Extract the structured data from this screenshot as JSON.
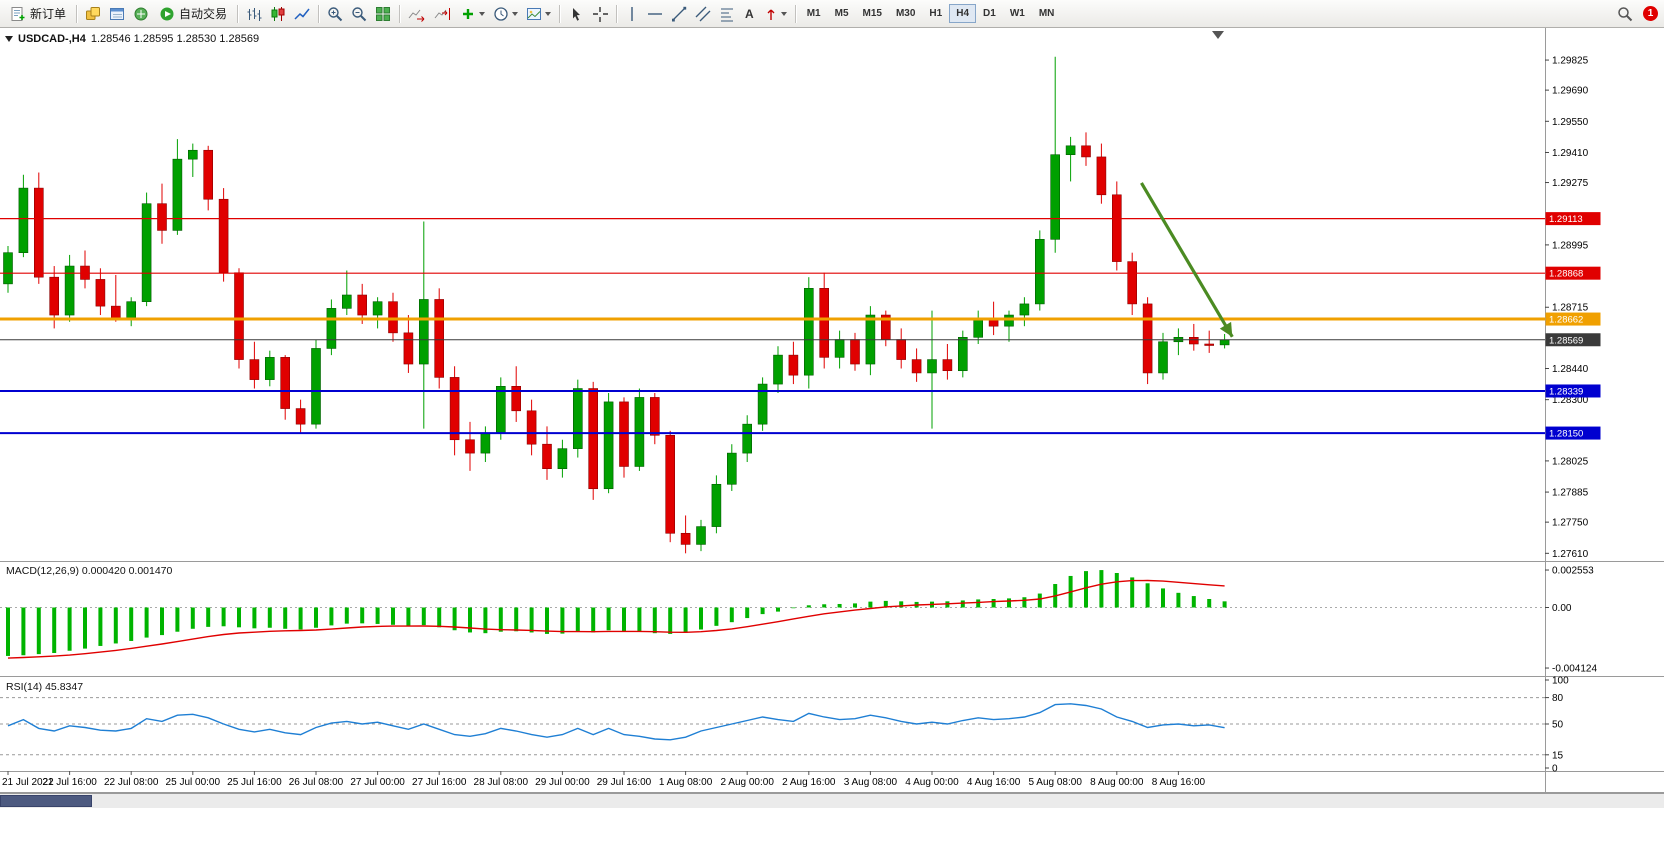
{
  "toolbar": {
    "new_order_label": "新订单",
    "autotrading_label": "自动交易",
    "text_tool_label": "A",
    "timeframes": [
      "M1",
      "M5",
      "M15",
      "M30",
      "H1",
      "H4",
      "D1",
      "W1",
      "MN"
    ],
    "active_timeframe": "H4",
    "notification_count": "1"
  },
  "chart": {
    "symbol_label": "USDCAD-,H4",
    "ohlc_text": "1.28546 1.28595 1.28530 1.28569",
    "macd_label": "MACD(12,26,9) 0.000420 0.001470",
    "rsi_label": "RSI(14) 45.8347"
  },
  "chart_data": {
    "type": "candlestick",
    "symbol": "USDCAD-",
    "period": "H4",
    "current_ohlc": {
      "open": 1.28546,
      "high": 1.28595,
      "low": 1.2853,
      "close": 1.28569
    },
    "y_axis": {
      "max": 1.2996,
      "min": 1.2758,
      "ticks": [
        1.29825,
        1.2969,
        1.2955,
        1.2941,
        1.29275,
        1.28995,
        1.28715,
        1.2844,
        1.283,
        1.28025,
        1.27885,
        1.2775,
        1.2761
      ]
    },
    "x_labels": [
      "21 Jul 2022",
      "21 Jul 16:00",
      "22 Jul 08:00",
      "25 Jul 00:00",
      "25 Jul 16:00",
      "26 Jul 08:00",
      "27 Jul 00:00",
      "27 Jul 16:00",
      "28 Jul 08:00",
      "29 Jul 00:00",
      "29 Jul 16:00",
      "1 Aug 08:00",
      "2 Aug 00:00",
      "2 Aug 16:00",
      "3 Aug 08:00",
      "4 Aug 00:00",
      "4 Aug 16:00",
      "5 Aug 08:00",
      "8 Aug 00:00",
      "8 Aug 16:00"
    ],
    "label_every_n_candles": 4,
    "candle_up_color": "#00a000",
    "candle_down_color": "#e00000",
    "candles": [
      [
        1.2882,
        1.2899,
        1.2878,
        1.2896
      ],
      [
        1.2896,
        1.2931,
        1.2894,
        1.2925
      ],
      [
        1.2925,
        1.2932,
        1.2882,
        1.2885
      ],
      [
        1.2885,
        1.289,
        1.2862,
        1.2868
      ],
      [
        1.2868,
        1.2895,
        1.2865,
        1.289
      ],
      [
        1.289,
        1.2897,
        1.288,
        1.2884
      ],
      [
        1.2884,
        1.2889,
        1.2868,
        1.2872
      ],
      [
        1.2872,
        1.2886,
        1.2865,
        1.2866
      ],
      [
        1.2866,
        1.2876,
        1.2863,
        1.2874
      ],
      [
        1.2874,
        1.2923,
        1.2872,
        1.2918
      ],
      [
        1.2918,
        1.2927,
        1.29,
        1.2906
      ],
      [
        1.2906,
        1.2947,
        1.2904,
        1.2938
      ],
      [
        1.2938,
        1.2945,
        1.293,
        1.2942
      ],
      [
        1.2942,
        1.2944,
        1.2915,
        1.292
      ],
      [
        1.292,
        1.2925,
        1.2883,
        1.2887
      ],
      [
        1.2887,
        1.2889,
        1.2844,
        1.2848
      ],
      [
        1.2848,
        1.2856,
        1.2835,
        1.2839
      ],
      [
        1.2839,
        1.2852,
        1.2836,
        1.2849
      ],
      [
        1.2849,
        1.285,
        1.2821,
        1.2826
      ],
      [
        1.2826,
        1.283,
        1.2815,
        1.2819
      ],
      [
        1.2819,
        1.2857,
        1.2817,
        1.2853
      ],
      [
        1.2853,
        1.2875,
        1.285,
        1.2871
      ],
      [
        1.2871,
        1.2888,
        1.2868,
        1.2877
      ],
      [
        1.2877,
        1.2882,
        1.2864,
        1.2868
      ],
      [
        1.2868,
        1.2876,
        1.2862,
        1.2874
      ],
      [
        1.2874,
        1.2878,
        1.2856,
        1.286
      ],
      [
        1.286,
        1.2868,
        1.2842,
        1.2846
      ],
      [
        1.2846,
        1.291,
        1.2817,
        1.2875
      ],
      [
        1.2875,
        1.288,
        1.2835,
        1.284
      ],
      [
        1.284,
        1.2845,
        1.2805,
        1.2812
      ],
      [
        1.2812,
        1.282,
        1.2798,
        1.2806
      ],
      [
        1.2806,
        1.2818,
        1.2802,
        1.2815
      ],
      [
        1.2815,
        1.284,
        1.2812,
        1.2836
      ],
      [
        1.2836,
        1.2845,
        1.282,
        1.2825
      ],
      [
        1.2825,
        1.283,
        1.2805,
        1.281
      ],
      [
        1.281,
        1.2818,
        1.2794,
        1.2799
      ],
      [
        1.2799,
        1.2812,
        1.2795,
        1.2808
      ],
      [
        1.2808,
        1.2839,
        1.2804,
        1.2835
      ],
      [
        1.2835,
        1.2838,
        1.2785,
        1.279
      ],
      [
        1.279,
        1.2833,
        1.2788,
        1.2829
      ],
      [
        1.2829,
        1.2831,
        1.2795,
        1.28
      ],
      [
        1.28,
        1.2835,
        1.2798,
        1.2831
      ],
      [
        1.2831,
        1.2833,
        1.281,
        1.2814
      ],
      [
        1.2814,
        1.2816,
        1.2766,
        1.277
      ],
      [
        1.277,
        1.2778,
        1.2761,
        1.2765
      ],
      [
        1.2765,
        1.2776,
        1.2762,
        1.2773
      ],
      [
        1.2773,
        1.2796,
        1.277,
        1.2792
      ],
      [
        1.2792,
        1.281,
        1.2789,
        1.2806
      ],
      [
        1.2806,
        1.2823,
        1.2802,
        1.2819
      ],
      [
        1.2819,
        1.284,
        1.2816,
        1.2837
      ],
      [
        1.2837,
        1.2854,
        1.2833,
        1.285
      ],
      [
        1.285,
        1.2856,
        1.2837,
        1.2841
      ],
      [
        1.2841,
        1.2885,
        1.2835,
        1.288
      ],
      [
        1.288,
        1.2887,
        1.2844,
        1.2849
      ],
      [
        1.2849,
        1.2861,
        1.2844,
        1.2857
      ],
      [
        1.2857,
        1.286,
        1.2843,
        1.2846
      ],
      [
        1.2846,
        1.2872,
        1.2841,
        1.2868
      ],
      [
        1.2868,
        1.287,
        1.2854,
        1.2857
      ],
      [
        1.2857,
        1.2862,
        1.2844,
        1.2848
      ],
      [
        1.2848,
        1.2853,
        1.2838,
        1.2842
      ],
      [
        1.2842,
        1.287,
        1.2817,
        1.2848
      ],
      [
        1.2848,
        1.2855,
        1.2839,
        1.2843
      ],
      [
        1.2843,
        1.2861,
        1.284,
        1.2858
      ],
      [
        1.2858,
        1.287,
        1.2855,
        1.2866
      ],
      [
        1.2866,
        1.2874,
        1.2859,
        1.2863
      ],
      [
        1.2863,
        1.287,
        1.2856,
        1.2868
      ],
      [
        1.2868,
        1.2876,
        1.2863,
        1.2873
      ],
      [
        1.2873,
        1.2906,
        1.287,
        1.2902
      ],
      [
        1.2902,
        1.2984,
        1.2896,
        1.294
      ],
      [
        1.294,
        1.2948,
        1.2928,
        1.2944
      ],
      [
        1.2944,
        1.295,
        1.2935,
        1.2939
      ],
      [
        1.2939,
        1.2945,
        1.2918,
        1.2922
      ],
      [
        1.2922,
        1.2928,
        1.2888,
        1.2892
      ],
      [
        1.2892,
        1.2896,
        1.2868,
        1.2873
      ],
      [
        1.2873,
        1.2876,
        1.2837,
        1.2842
      ],
      [
        1.2842,
        1.286,
        1.2839,
        1.2856
      ],
      [
        1.2856,
        1.2862,
        1.285,
        1.2858
      ],
      [
        1.2858,
        1.2864,
        1.2852,
        1.2855
      ],
      [
        1.2855,
        1.2861,
        1.2851,
        1.28546
      ],
      [
        1.28546,
        1.28595,
        1.2853,
        1.28569
      ]
    ],
    "price_lines": [
      {
        "value": 1.29113,
        "color": "#e00000",
        "width": 1.2
      },
      {
        "value": 1.28868,
        "color": "#e00000",
        "width": 1.2
      },
      {
        "value": 1.28662,
        "color": "#f0a000",
        "width": 3
      },
      {
        "value": 1.28569,
        "color": "#3a3a3a",
        "width": 1
      },
      {
        "value": 1.28339,
        "color": "#0000d0",
        "width": 2
      },
      {
        "value": 1.2815,
        "color": "#0000d0",
        "width": 2
      }
    ],
    "trend_arrow": {
      "from_index": 73.6,
      "from_price": 1.29273,
      "to_index": 79.5,
      "to_price": 1.28582,
      "color": "#4b8b22"
    },
    "macd": {
      "title": "MACD(12,26,9)",
      "current_main": 0.00042,
      "current_signal": 0.00147,
      "axis": [
        0.002553,
        0,
        -0.004124
      ],
      "axis_labels": [
        "0.002553",
        "0.00",
        "-0.004124"
      ],
      "histogram_color": "#00b400",
      "signal_color": "#e00000",
      "histogram": [
        -0.0033,
        -0.00325,
        -0.00318,
        -0.0031,
        -0.00295,
        -0.0028,
        -0.00262,
        -0.00245,
        -0.00228,
        -0.00205,
        -0.00188,
        -0.00165,
        -0.00145,
        -0.00132,
        -0.00128,
        -0.00135,
        -0.00142,
        -0.00138,
        -0.00145,
        -0.0015,
        -0.00138,
        -0.00122,
        -0.0011,
        -0.00108,
        -0.00112,
        -0.00118,
        -0.00128,
        -0.0012,
        -0.00135,
        -0.00155,
        -0.0017,
        -0.00175,
        -0.00165,
        -0.00162,
        -0.0017,
        -0.0018,
        -0.00178,
        -0.0016,
        -0.0017,
        -0.00155,
        -0.00165,
        -0.0016,
        -0.00175,
        -0.0018,
        -0.00172,
        -0.0015,
        -0.00125,
        -0.001,
        -0.00072,
        -0.00045,
        -0.00028,
        -5e-05,
        0.00015,
        0.00022,
        0.00024,
        0.00028,
        0.0004,
        0.00045,
        0.00042,
        0.00038,
        0.0004,
        0.00042,
        0.00048,
        0.00055,
        0.00058,
        0.00062,
        0.0007,
        0.00095,
        0.0016,
        0.00215,
        0.00248,
        0.00255,
        0.00235,
        0.00205,
        0.00165,
        0.0013,
        0.001,
        0.00078,
        0.00058,
        0.00042
      ],
      "signal": [
        -0.00345,
        -0.00341,
        -0.00336,
        -0.00331,
        -0.00324,
        -0.00315,
        -0.00304,
        -0.00292,
        -0.00279,
        -0.00264,
        -0.00249,
        -0.00232,
        -0.00215,
        -0.00198,
        -0.00184,
        -0.00174,
        -0.00168,
        -0.00162,
        -0.00159,
        -0.00157,
        -0.00153,
        -0.00147,
        -0.0014,
        -0.00133,
        -0.00129,
        -0.00127,
        -0.00127,
        -0.00126,
        -0.00128,
        -0.00133,
        -0.0014,
        -0.00147,
        -0.00151,
        -0.00153,
        -0.00156,
        -0.00161,
        -0.00164,
        -0.00164,
        -0.00165,
        -0.00163,
        -0.00163,
        -0.00163,
        -0.00165,
        -0.00168,
        -0.00169,
        -0.00165,
        -0.00157,
        -0.00146,
        -0.00131,
        -0.00114,
        -0.00097,
        -0.00078,
        -0.0006,
        -0.00043,
        -0.0003,
        -0.00018,
        -7e-05,
        4e-05,
        0.00011,
        0.00017,
        0.00021,
        0.00025,
        0.0003,
        0.00035,
        0.0004,
        0.00044,
        0.00049,
        0.00058,
        0.00079,
        0.00106,
        0.00134,
        0.00159,
        0.00175,
        0.00183,
        0.00184,
        0.0018,
        0.00172,
        0.00163,
        0.00155,
        0.00147
      ]
    },
    "rsi": {
      "title": "RSI(14)",
      "current": 45.8347,
      "color": "#1f7fd4",
      "levels": [
        80,
        50,
        15
      ],
      "axis_labels": [
        "100",
        "80",
        "50",
        "15",
        "0"
      ],
      "values": [
        48,
        55,
        45,
        42,
        48,
        46,
        43,
        42,
        45,
        56,
        53,
        60,
        61,
        57,
        50,
        44,
        41,
        44,
        40,
        38,
        46,
        51,
        53,
        50,
        52,
        48,
        44,
        50,
        44,
        38,
        36,
        39,
        45,
        42,
        38,
        35,
        38,
        45,
        38,
        45,
        38,
        36,
        33,
        32,
        35,
        42,
        46,
        50,
        54,
        58,
        55,
        53,
        62,
        58,
        55,
        56,
        60,
        57,
        53,
        50,
        52,
        50,
        54,
        57,
        55,
        56,
        58,
        63,
        72,
        73,
        71,
        67,
        58,
        53,
        46,
        49,
        50,
        48,
        49,
        45.83
      ]
    }
  }
}
